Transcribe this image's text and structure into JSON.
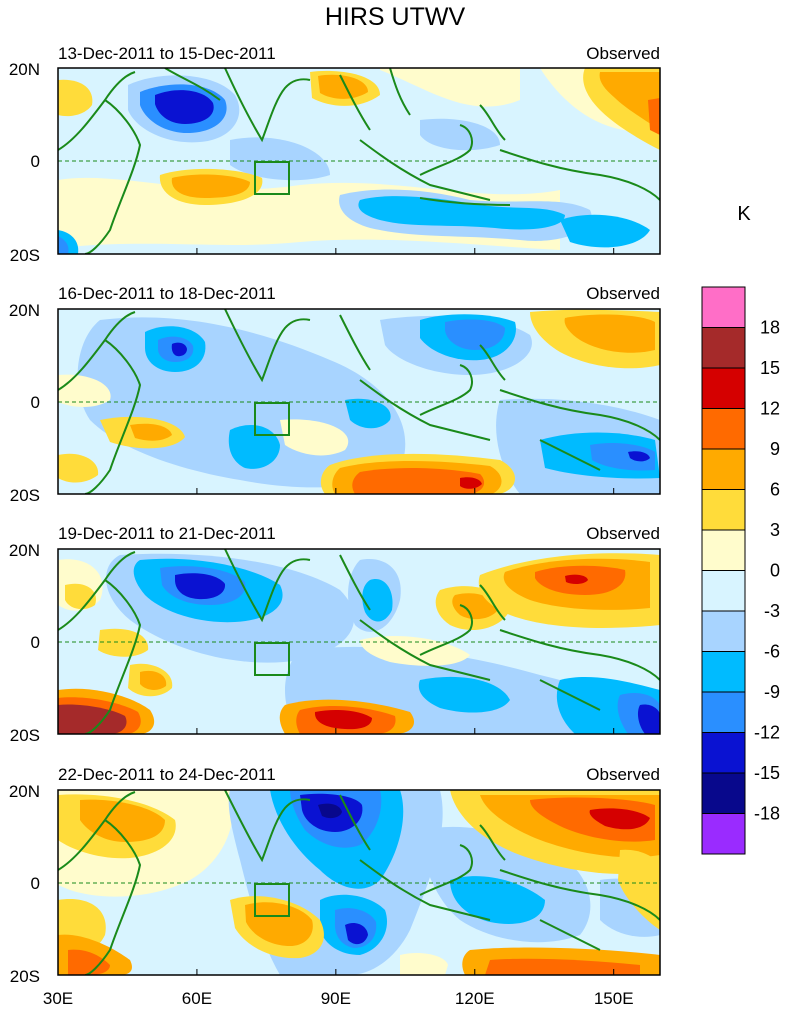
{
  "figure": {
    "title": "HIRS UTWV",
    "units_label": "K"
  },
  "panels": [
    {
      "date_range": "13-Dec-2011 to 15-Dec-2011",
      "tag": "Observed"
    },
    {
      "date_range": "16-Dec-2011 to 18-Dec-2011",
      "tag": "Observed"
    },
    {
      "date_range": "19-Dec-2011 to 21-Dec-2011",
      "tag": "Observed"
    },
    {
      "date_range": "22-Dec-2011 to 24-Dec-2011",
      "tag": "Observed"
    }
  ],
  "axes": {
    "lat_labels": [
      "20N",
      "0",
      "20S"
    ],
    "lon_labels": [
      "30E",
      "60E",
      "90E",
      "120E",
      "150E"
    ],
    "lon_values": [
      30,
      60,
      90,
      120,
      150
    ],
    "lon_range": [
      30,
      160
    ],
    "lat_range": [
      -20,
      20
    ]
  },
  "colorbar": {
    "labels": [
      "18",
      "15",
      "12",
      "9",
      "6",
      "3",
      "0",
      "-3",
      "-6",
      "-9",
      "-12",
      "-15",
      "-18"
    ],
    "colors": [
      "#ff6ec7",
      "#a52a2a",
      "#d50000",
      "#ff6a00",
      "#ffaa00",
      "#ffdc3a",
      "#fffccc",
      "#d8f4ff",
      "#a8d4ff",
      "#00bbff",
      "#2a8fff",
      "#0a12d2",
      "#08088c",
      "#9a2bff"
    ]
  },
  "map_style": {
    "ocean_background": "#d8f4ff",
    "coastline_color": "#1a8a1a"
  }
}
